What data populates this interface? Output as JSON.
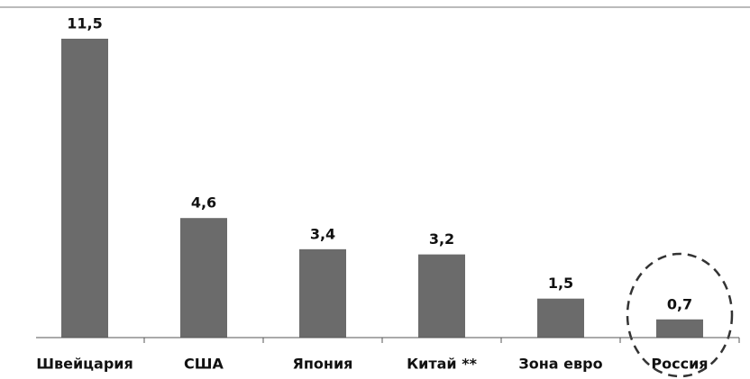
{
  "chart_data": {
    "type": "bar",
    "categories": [
      "Швейцария",
      "США",
      "Япония",
      "Китай **",
      "Зона евро",
      "Россия"
    ],
    "values": [
      11.5,
      4.6,
      3.4,
      3.2,
      1.5,
      0.7
    ],
    "value_labels": [
      "11,5",
      "4,6",
      "3,4",
      "3,2",
      "1,5",
      "0,7"
    ],
    "color": "#6b6b6b"
  }
}
